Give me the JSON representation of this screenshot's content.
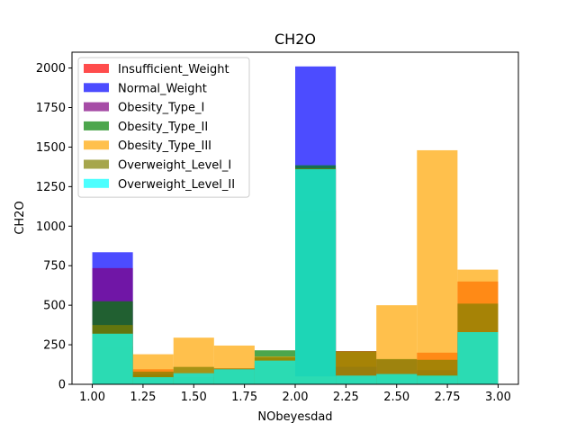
{
  "chart_data": {
    "type": "bar",
    "title": "CH2O",
    "xlabel": "NObeyesdad",
    "ylabel": "CH2O",
    "xlim": [
      0.9,
      3.1
    ],
    "ylim": [
      0,
      2100
    ],
    "x_ticks": [
      1.0,
      1.25,
      1.5,
      1.75,
      2.0,
      2.25,
      2.5,
      2.75,
      3.0
    ],
    "x_tick_labels": [
      "1.00",
      "1.25",
      "1.50",
      "1.75",
      "2.00",
      "2.25",
      "2.50",
      "2.75",
      "3.00"
    ],
    "y_ticks": [
      0,
      250,
      500,
      750,
      1000,
      1250,
      1500,
      1750,
      2000
    ],
    "y_tick_labels": [
      "0",
      "250",
      "500",
      "750",
      "1000",
      "1250",
      "1500",
      "1750",
      "2000"
    ],
    "bin_edges": [
      1.0,
      1.2,
      1.4,
      1.6,
      1.8,
      2.0,
      2.2,
      2.4,
      2.6,
      2.8,
      3.0
    ],
    "legend_position": "upper-left",
    "alpha": 0.7,
    "series": [
      {
        "name": "Insufficient_Weight",
        "color": "#ff0000",
        "values": [
          240,
          95,
          35,
          100,
          115,
          1100,
          210,
          60,
          200,
          650
        ]
      },
      {
        "name": "Normal_Weight",
        "color": "#0000ff",
        "values": [
          835,
          35,
          45,
          95,
          120,
          2010,
          110,
          65,
          55,
          325
        ]
      },
      {
        "name": "Obesity_Type_I",
        "color": "#800080",
        "values": [
          735,
          65,
          70,
          100,
          145,
          1360,
          110,
          155,
          90,
          330
        ]
      },
      {
        "name": "Obesity_Type_II",
        "color": "#008000",
        "values": [
          525,
          60,
          45,
          90,
          215,
          1385,
          50,
          60,
          60,
          330
        ]
      },
      {
        "name": "Obesity_Type_III",
        "color": "#ffa500",
        "values": [
          320,
          190,
          295,
          245,
          175,
          50,
          205,
          500,
          1480,
          725
        ]
      },
      {
        "name": "Overweight_Level_I",
        "color": "#808000",
        "values": [
          375,
          80,
          110,
          100,
          170,
          1365,
          210,
          160,
          155,
          510
        ]
      },
      {
        "name": "Overweight_Level_II",
        "color": "#00ffff",
        "values": [
          320,
          45,
          70,
          95,
          150,
          1360,
          55,
          65,
          55,
          330
        ]
      }
    ]
  }
}
